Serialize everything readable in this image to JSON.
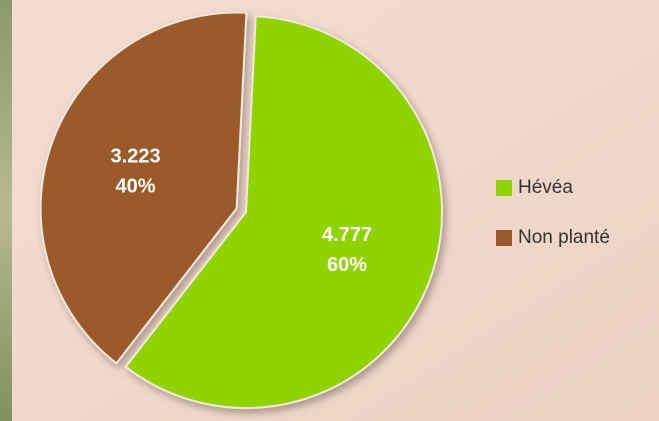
{
  "chart_data": {
    "type": "pie",
    "categories": [
      "Hévéa",
      "Non planté"
    ],
    "values": [
      4.777,
      3.223
    ],
    "percents": [
      60,
      40
    ],
    "percent_labels": [
      "60%",
      "40%"
    ],
    "colors": [
      "#8fd400",
      "#9a5a2c"
    ],
    "legend": "right"
  }
}
